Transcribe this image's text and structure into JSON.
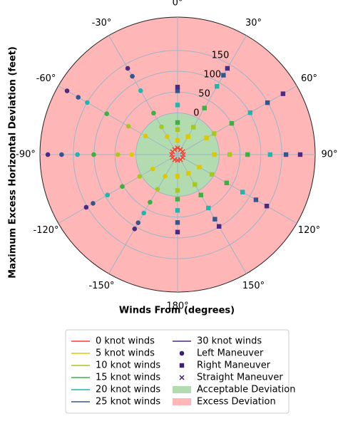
{
  "chart_data": {
    "type": "polar-scatter",
    "xlabel": "Winds From (degrees)",
    "ylabel": "Maximum Excess Horizontal Deviation (feet)",
    "theta": [
      -150,
      -120,
      -90,
      -60,
      -30,
      0,
      30,
      60,
      90,
      120,
      150,
      180
    ],
    "thetaticks": [
      {
        "value": 0,
        "label": "0°"
      },
      {
        "value": 30,
        "label": "30°"
      },
      {
        "value": 60,
        "label": "60°"
      },
      {
        "value": 90,
        "label": "90°"
      },
      {
        "value": 120,
        "label": "120°"
      },
      {
        "value": 150,
        "label": "150°"
      },
      {
        "value": 180,
        "label": "180°"
      },
      {
        "value": -150,
        "label": "-150°"
      },
      {
        "value": -120,
        "label": "-120°"
      },
      {
        "value": -90,
        "label": "-90°"
      },
      {
        "value": -60,
        "label": "-60°"
      },
      {
        "value": -30,
        "label": "-30°"
      }
    ],
    "rlim": [
      -100,
      230
    ],
    "rticks": [
      0,
      50,
      100,
      150
    ],
    "grid": true,
    "regions": [
      {
        "name": "Acceptable Deviation",
        "color": "#b2dcb0",
        "from": -100,
        "to": 0
      },
      {
        "name": "Excess Deviation",
        "color": "#ffb6b6",
        "from": 0,
        "to": 230
      }
    ],
    "series": [
      {
        "name": "0 knot winds",
        "color": "#ff3b30",
        "marker": "x",
        "values": [
          -86,
          -86,
          -86,
          -86,
          -86,
          -84,
          -86,
          -86,
          -86,
          -86,
          -86,
          -86
        ]
      },
      {
        "name": "5 knot winds",
        "color": "#e0c800",
        "marker": "mixed",
        "values": [
          -40,
          -31,
          10,
          -11,
          -50,
          -66,
          -50,
          -20,
          -12,
          -40,
          -48,
          -48
        ]
      },
      {
        "name": "10 knot winds",
        "color": "#a8c820",
        "marker": "mixed",
        "values": [
          -4,
          5,
          43,
          36,
          -23,
          -40,
          -24,
          1,
          25,
          -5,
          -17,
          -14
        ]
      },
      {
        "name": "15 knot winds",
        "color": "#3cb043",
        "marker": "mixed",
        "values": [
          32,
          53,
          101,
          96,
          15,
          -23,
          29,
          50,
          68,
          36,
          12,
          7
        ]
      },
      {
        "name": "20 knot winds",
        "color": "#1fb5b0",
        "marker": "mixed",
        "values": [
          62,
          94,
          140,
          150,
          77,
          19,
          89,
          101,
          122,
          80,
          48,
          34
        ]
      },
      {
        "name": "25 knot winds",
        "color": "#34558f",
        "marker": "mixed",
        "values": [
          89,
          134,
          178,
          175,
          117,
          53,
          120,
          149,
          160,
          117,
          79,
          63
        ]
      },
      {
        "name": "30 knot winds",
        "color": "#4b2a85",
        "marker": "mixed",
        "values": [
          106,
          153,
          211,
          206,
          139,
          62,
          139,
          192,
          194,
          147,
          99,
          86
        ]
      }
    ],
    "maneuvers": [
      {
        "name": "Left Maneuver",
        "marker": "circle",
        "color": "#3d1f78"
      },
      {
        "name": "Right Maneuver",
        "marker": "square",
        "color": "#3d1f78"
      },
      {
        "name": "Straight Maneuver",
        "marker": "x",
        "color": "#3d1f78"
      }
    ]
  }
}
